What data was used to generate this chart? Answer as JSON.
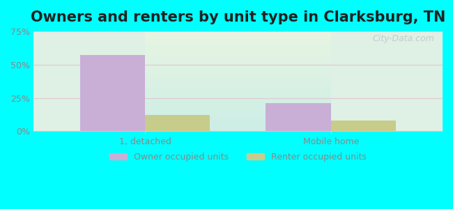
{
  "title": "Owners and renters by unit type in Clarksburg, TN",
  "categories": [
    "1, detached",
    "Mobile home"
  ],
  "owner_values": [
    57,
    21
  ],
  "renter_values": [
    12,
    8
  ],
  "owner_color": "#c9aed6",
  "renter_color": "#c8cc8a",
  "ylim": [
    0,
    75
  ],
  "yticks": [
    0,
    25,
    50,
    75
  ],
  "ytick_labels": [
    "0%",
    "25%",
    "50%",
    "75%"
  ],
  "bar_width": 0.35,
  "background_outer": "#00ffff",
  "background_inner_top": "#e8f5e0",
  "background_inner_bottom": "#d0f0e8",
  "grid_color": "#e0c8d0",
  "title_fontsize": 15,
  "axis_label_color": "#888888",
  "legend_label_owner": "Owner occupied units",
  "legend_label_renter": "Renter occupied units",
  "watermark": "City-Data.com"
}
